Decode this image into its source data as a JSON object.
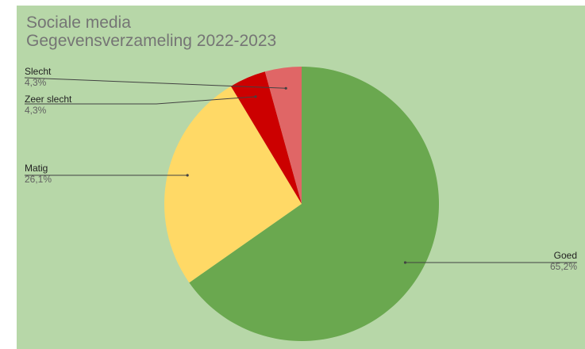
{
  "chart_data": {
    "type": "pie",
    "title": "Sociale media",
    "subtitle": "Gegevensverzameling 2022-2023",
    "slices": [
      {
        "name": "Goed",
        "percent_label": "65,2%",
        "value": 65.2,
        "color": "#6aa84f"
      },
      {
        "name": "Matig",
        "percent_label": "26,1%",
        "value": 26.1,
        "color": "#ffd966"
      },
      {
        "name": "Zeer slecht",
        "percent_label": "4,3%",
        "value": 4.3,
        "color": "#cc0000"
      },
      {
        "name": "Slecht",
        "percent_label": "4,3%",
        "value": 4.3,
        "color": "#e06666"
      }
    ],
    "background": "#b7d7a8",
    "legend": "labels-with-leader-lines"
  }
}
